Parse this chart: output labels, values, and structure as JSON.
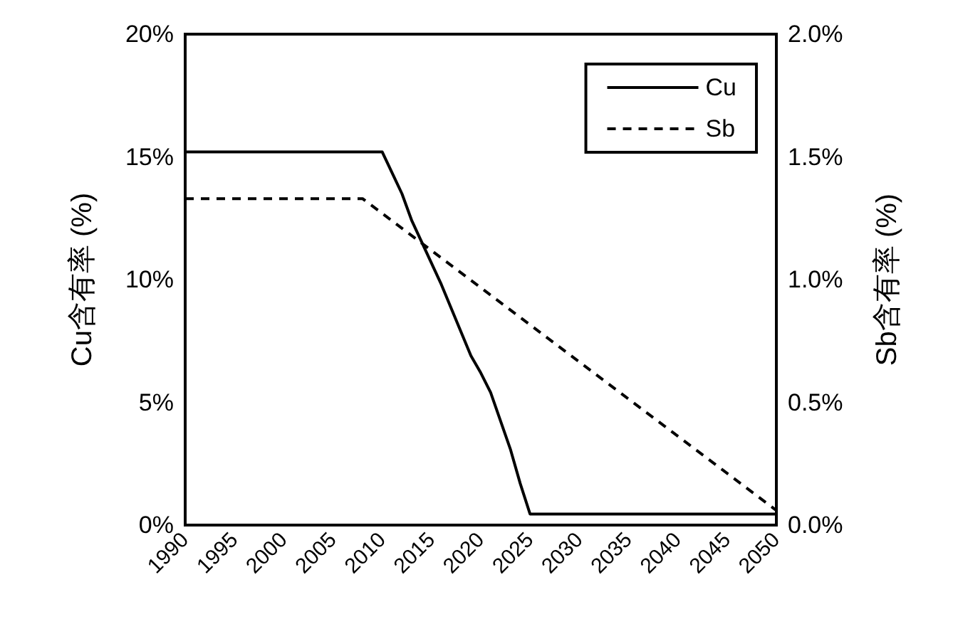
{
  "chart_data": {
    "type": "line",
    "xlabel": null,
    "ylabel": "Cu含有率 (%)",
    "y2label": "Sb含有率 (%)",
    "xlim": [
      1990,
      2050
    ],
    "xticks": [
      1990,
      1995,
      2000,
      2005,
      2010,
      2015,
      2020,
      2025,
      2030,
      2035,
      2040,
      2045,
      2050
    ],
    "ylim": [
      0,
      20
    ],
    "yticks": [
      {
        "value": 0,
        "label": "0%"
      },
      {
        "value": 5,
        "label": "5%"
      },
      {
        "value": 10,
        "label": "10%"
      },
      {
        "value": 15,
        "label": "15%"
      },
      {
        "value": 20,
        "label": "20%"
      }
    ],
    "y2lim": [
      0,
      2
    ],
    "y2ticks": [
      {
        "value": 0,
        "label": "0.0%"
      },
      {
        "value": 0.5,
        "label": "0.5%"
      },
      {
        "value": 1,
        "label": "1.0%"
      },
      {
        "value": 1.5,
        "label": "1.5%"
      },
      {
        "value": 2,
        "label": "2.0%"
      }
    ],
    "grid": false,
    "legend": "top right",
    "marker": "none",
    "series": [
      {
        "name": "Cu",
        "color": "#000000",
        "line_style": "solid",
        "x": [
          1990,
          2010,
          2012,
          2013,
          2016,
          2019,
          2020,
          2021,
          2023,
          2024,
          2025,
          2050
        ],
        "values": [
          15.2,
          15.2,
          13.5,
          12.4,
          9.8,
          6.9,
          6.2,
          5.4,
          3.1,
          1.7,
          0.45,
          0.45
        ]
      },
      {
        "name": "Sb",
        "color": "#000000",
        "line_style": "dashed",
        "axis": "y2",
        "x": [
          1990,
          2008,
          2050
        ],
        "values": [
          1.33,
          1.33,
          0.06
        ]
      }
    ]
  }
}
